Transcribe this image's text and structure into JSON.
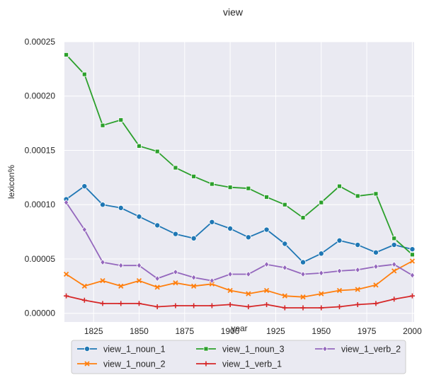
{
  "chart_data": {
    "type": "line",
    "title": "view",
    "xlabel": "year",
    "ylabel": "lexicon%",
    "xlim": [
      1809,
      2001
    ],
    "ylim": [
      -8e-06,
      0.00025
    ],
    "xticks": [
      "1825",
      "1850",
      "1875",
      "1900",
      "1925",
      "1950",
      "1975",
      "2000"
    ],
    "yticks": [
      "0.00000",
      "0.00005",
      "0.00010",
      "0.00015",
      "0.00020",
      "0.00025"
    ],
    "grid": true,
    "legend_position": "bottom-center",
    "x": [
      1810,
      1820,
      1830,
      1840,
      1850,
      1860,
      1870,
      1880,
      1890,
      1900,
      1910,
      1920,
      1930,
      1940,
      1950,
      1960,
      1970,
      1980,
      1990,
      2000
    ],
    "series": [
      {
        "name": "view_1_noun_1",
        "color": "#1f77b4",
        "marker": "circle",
        "values": [
          0.000105,
          0.000117,
          0.0001,
          9.7e-05,
          8.9e-05,
          8.1e-05,
          7.3e-05,
          6.9e-05,
          8.4e-05,
          7.8e-05,
          7e-05,
          7.7e-05,
          6.4e-05,
          4.7e-05,
          5.5e-05,
          6.7e-05,
          6.3e-05,
          5.6e-05,
          6.3e-05,
          5.9e-05
        ]
      },
      {
        "name": "view_1_noun_2",
        "color": "#ff7f0e",
        "marker": "x",
        "values": [
          3.6e-05,
          2.5e-05,
          3e-05,
          2.5e-05,
          3e-05,
          2.4e-05,
          2.8e-05,
          2.5e-05,
          2.7e-05,
          2.1e-05,
          1.8e-05,
          2.1e-05,
          1.6e-05,
          1.5e-05,
          1.8e-05,
          2.1e-05,
          2.2e-05,
          2.6e-05,
          3.9e-05,
          4.8e-05
        ]
      },
      {
        "name": "view_1_noun_3",
        "color": "#2ca02c",
        "marker": "square",
        "values": [
          0.000238,
          0.00022,
          0.000173,
          0.000178,
          0.000154,
          0.000149,
          0.000134,
          0.000126,
          0.000119,
          0.000116,
          0.000115,
          0.000107,
          0.0001,
          8.8e-05,
          0.000102,
          0.000117,
          0.000108,
          0.00011,
          6.9e-05,
          5.4e-05
        ]
      },
      {
        "name": "view_1_verb_1",
        "color": "#d62728",
        "marker": "plus",
        "values": [
          1.6e-05,
          1.2e-05,
          9e-06,
          9e-06,
          9e-06,
          6e-06,
          7e-06,
          7e-06,
          7e-06,
          8e-06,
          6e-06,
          8e-06,
          5e-06,
          5e-06,
          5e-06,
          6e-06,
          8e-06,
          9e-06,
          1.3e-05,
          1.6e-05
        ]
      },
      {
        "name": "view_1_verb_2",
        "color": "#9467bd",
        "marker": "diamond",
        "values": [
          0.000102,
          7.7e-05,
          4.7e-05,
          4.4e-05,
          4.4e-05,
          3.2e-05,
          3.8e-05,
          3.3e-05,
          3e-05,
          3.6e-05,
          3.6e-05,
          4.5e-05,
          4.2e-05,
          3.6e-05,
          3.7e-05,
          3.9e-05,
          4e-05,
          4.3e-05,
          4.5e-05,
          3.5e-05
        ]
      }
    ]
  }
}
